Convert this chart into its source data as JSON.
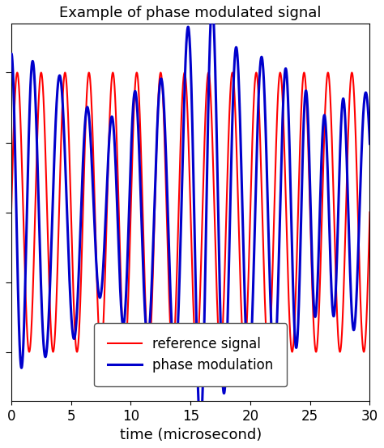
{
  "title": "Example of phase modulated signal",
  "xlabel": "time (microsecond)",
  "xlim": [
    0,
    30
  ],
  "ylim": [
    -1.35,
    1.35
  ],
  "xticks": [
    0,
    5,
    10,
    15,
    20,
    25,
    30
  ],
  "ref_color": "#ff0000",
  "mod_color": "#0000cc",
  "ref_linewidth": 1.5,
  "mod_linewidth": 2.2,
  "ref_label": "reference signal",
  "mod_label": "phase modulation",
  "carrier_freq": 0.5,
  "mod_freq": 0.033,
  "mod_depth_base": 1.8,
  "title_fontsize": 13,
  "label_fontsize": 13,
  "tick_fontsize": 12,
  "legend_fontsize": 12,
  "n_points": 8000,
  "fig_width": 4.74,
  "fig_height": 5.52,
  "dpi": 100
}
